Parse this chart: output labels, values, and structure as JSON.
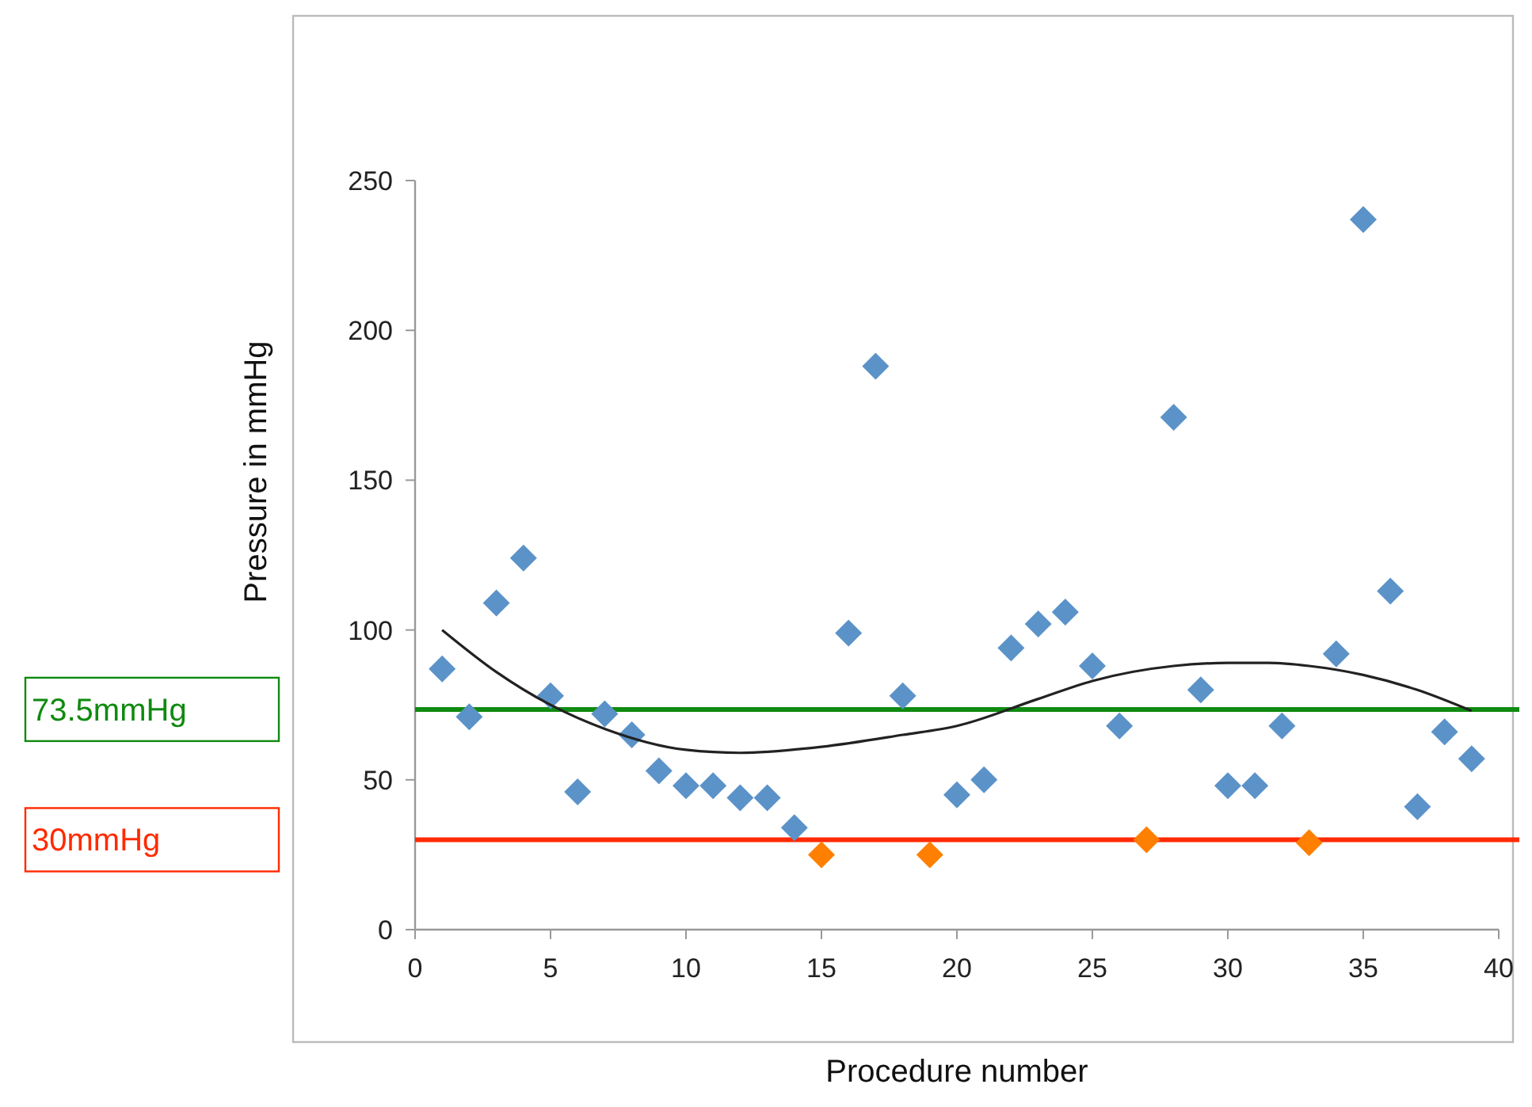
{
  "chart_data": {
    "type": "scatter",
    "xlabel": "Procedure number",
    "ylabel": "Pressure in mmHg",
    "xlim": [
      0,
      40
    ],
    "xticks": [
      0,
      5,
      10,
      15,
      20,
      25,
      30,
      35,
      40
    ],
    "ylim": [
      0,
      250
    ],
    "yticks": [
      0,
      50,
      100,
      150,
      200,
      250
    ],
    "grid": false,
    "marker": "diamond",
    "series": [
      {
        "color": "#5b93c9",
        "x": [
          1,
          2,
          3,
          4,
          5,
          6,
          7,
          8,
          9,
          10,
          11,
          12,
          13,
          14,
          16,
          17,
          18,
          20,
          21,
          22,
          23,
          24,
          25,
          26,
          28,
          29,
          30,
          31,
          32,
          34,
          35,
          36,
          37,
          38,
          39
        ],
        "values": [
          87,
          71,
          109,
          124,
          78,
          46,
          72,
          65,
          53,
          48,
          48,
          44,
          44,
          34,
          99,
          188,
          78,
          45,
          50,
          94,
          102,
          106,
          88,
          68,
          171,
          80,
          48,
          48,
          68,
          92,
          237,
          113,
          41,
          66,
          57
        ]
      },
      {
        "color": "#ff7f00",
        "x": [
          15,
          19,
          27,
          33
        ],
        "values": [
          25,
          25,
          30,
          29
        ]
      },
      {
        "type": "line",
        "color": "#222222",
        "marker": "none",
        "x": [
          1,
          3,
          5,
          7,
          10,
          12,
          15,
          18,
          20,
          23,
          25,
          28,
          30,
          31.5,
          33,
          35,
          37,
          39
        ],
        "values": [
          100,
          86,
          75,
          67,
          60,
          59,
          61,
          65,
          68,
          77,
          83,
          88,
          89,
          89,
          88,
          85,
          80,
          73
        ]
      }
    ],
    "ref_lines": [
      {
        "axis": "y",
        "value": 73.5,
        "label": "73.5mmHg",
        "color": "#108a10"
      },
      {
        "axis": "y",
        "value": 30,
        "label": "30mmHg",
        "color": "#ff2a00"
      }
    ]
  }
}
